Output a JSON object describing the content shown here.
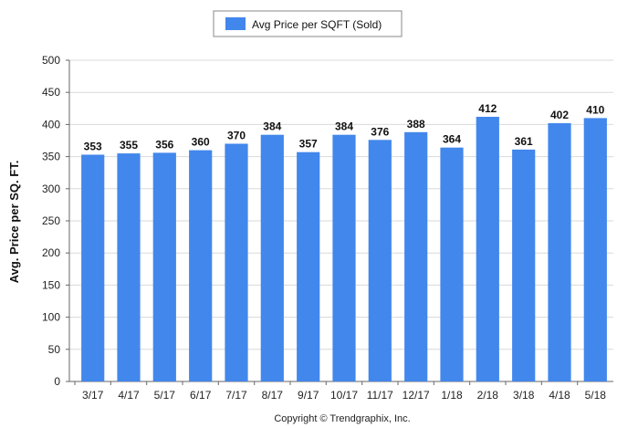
{
  "chart_data": {
    "type": "bar",
    "categories": [
      "3/17",
      "4/17",
      "5/17",
      "6/17",
      "7/17",
      "8/17",
      "9/17",
      "10/17",
      "11/17",
      "12/17",
      "1/18",
      "2/18",
      "3/18",
      "4/18",
      "5/18"
    ],
    "series": [
      {
        "name": "Avg Price per SQFT (Sold)",
        "values": [
          353,
          355,
          356,
          360,
          370,
          384,
          357,
          384,
          376,
          388,
          364,
          412,
          361,
          402,
          410
        ],
        "color": "#4287ec"
      }
    ],
    "ylabel": "Avg. Price per SQ. FT.",
    "xlabel": "",
    "ylim": [
      0,
      500
    ],
    "yticks": [
      0,
      50,
      100,
      150,
      200,
      250,
      300,
      350,
      400,
      450,
      500
    ],
    "grid": true,
    "legend_position": "top-center",
    "data_labels": true
  },
  "footer": {
    "copyright": "Copyright © Trendgraphix, Inc."
  }
}
